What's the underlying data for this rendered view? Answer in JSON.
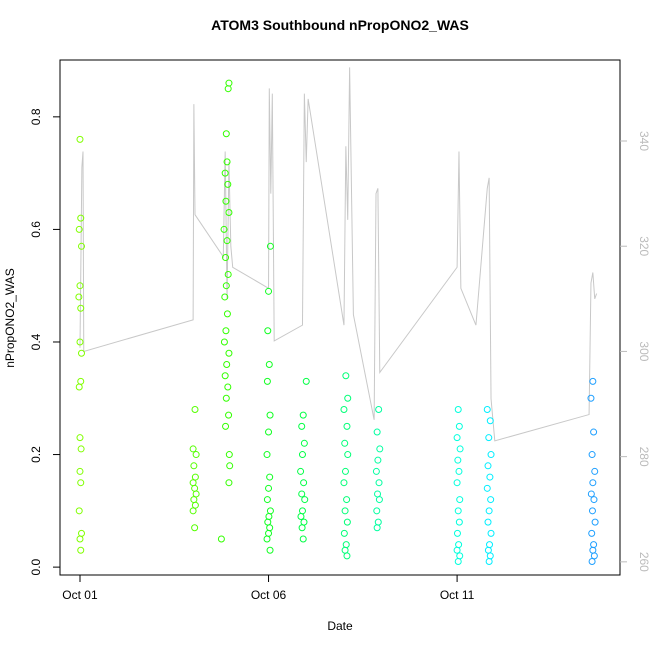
{
  "chart_data": {
    "type": "scatter",
    "title": "ATOM3 Southbound nPropONO2_WAS",
    "x_label": "Date",
    "y_label": "nPropONO2_WAS",
    "xlim": [
      -0.53,
      14.32
    ],
    "ylim": [
      -0.014,
      0.901
    ],
    "y2lim": [
      257.5,
      355.4
    ],
    "xticks": [
      {
        "value": 0,
        "label": "Oct 01"
      },
      {
        "value": 5,
        "label": "Oct 06"
      },
      {
        "value": 10,
        "label": "Oct 11"
      }
    ],
    "yticks": [
      {
        "value": 0,
        "label": "0.0"
      },
      0.2,
      0.4,
      0.6,
      0.8
    ],
    "y2ticks": [
      260,
      280,
      300,
      320,
      340
    ],
    "series": [
      {
        "color": "#80ff00",
        "x": [
          0.0,
          0.02,
          -0.02,
          0.04,
          0.0,
          -0.03,
          0.02,
          0.0,
          0.04,
          0.02,
          -0.02,
          0.0,
          0.03,
          0.0,
          0.02,
          -0.02,
          0.04,
          0.0,
          0.02
        ],
        "values": [
          0.76,
          0.62,
          0.6,
          0.57,
          0.5,
          0.48,
          0.46,
          0.4,
          0.38,
          0.33,
          0.32,
          0.23,
          0.21,
          0.17,
          0.15,
          0.1,
          0.06,
          0.05,
          0.03
        ]
      },
      {
        "color": "#55ff00",
        "x": [
          3.05,
          3.0,
          3.08,
          3.02,
          3.06,
          3.0,
          3.04,
          3.08,
          3.02,
          3.06,
          3.0,
          3.04
        ],
        "values": [
          0.28,
          0.21,
          0.2,
          0.18,
          0.16,
          0.15,
          0.14,
          0.13,
          0.12,
          0.11,
          0.1,
          0.07
        ]
      },
      {
        "color": "#33ff00",
        "x": [
          3.95,
          3.93,
          3.88,
          3.9,
          3.85,
          3.92,
          3.87,
          3.95,
          3.82,
          3.9,
          3.86,
          3.93,
          3.88,
          3.84,
          3.91,
          3.87,
          3.83,
          3.95,
          3.89,
          3.85,
          3.92,
          3.88,
          3.94,
          3.86,
          3.96,
          3.97,
          3.95,
          3.75
        ],
        "values": [
          0.86,
          0.85,
          0.77,
          0.72,
          0.7,
          0.68,
          0.65,
          0.63,
          0.6,
          0.58,
          0.55,
          0.52,
          0.5,
          0.48,
          0.45,
          0.42,
          0.4,
          0.38,
          0.36,
          0.34,
          0.32,
          0.3,
          0.27,
          0.25,
          0.2,
          0.18,
          0.15,
          0.05
        ]
      },
      {
        "color": "#11ff22",
        "x": [
          5.05,
          5.0,
          4.98,
          5.02,
          4.97,
          5.04,
          5.0,
          4.96,
          5.03,
          5.0,
          4.97,
          5.05,
          5.01,
          4.98,
          5.03,
          5.0,
          4.96,
          5.04
        ],
        "values": [
          0.57,
          0.49,
          0.42,
          0.36,
          0.33,
          0.27,
          0.24,
          0.2,
          0.16,
          0.14,
          0.12,
          0.1,
          0.09,
          0.08,
          0.07,
          0.06,
          0.05,
          0.03
        ]
      },
      {
        "color": "#00ff44",
        "x": [
          6.0,
          5.92,
          5.88,
          5.95,
          5.9,
          5.85,
          5.93,
          5.88,
          5.96,
          5.9,
          5.86,
          5.94,
          5.89,
          5.92
        ],
        "values": [
          0.33,
          0.27,
          0.25,
          0.22,
          0.2,
          0.17,
          0.15,
          0.13,
          0.12,
          0.1,
          0.09,
          0.08,
          0.07,
          0.05
        ]
      },
      {
        "color": "#00ff77",
        "x": [
          7.05,
          7.1,
          7.0,
          7.08,
          7.02,
          7.1,
          7.04,
          7.0,
          7.07,
          7.03,
          7.09,
          7.01,
          7.06,
          7.03,
          7.08
        ],
        "values": [
          0.34,
          0.3,
          0.28,
          0.25,
          0.22,
          0.2,
          0.17,
          0.15,
          0.12,
          0.1,
          0.08,
          0.06,
          0.04,
          0.03,
          0.02
        ]
      },
      {
        "color": "#00ffa0",
        "x": [
          7.92,
          7.88,
          7.95,
          7.9,
          7.86,
          7.93,
          7.89,
          7.94,
          7.87,
          7.91,
          7.88
        ],
        "values": [
          0.28,
          0.24,
          0.21,
          0.19,
          0.17,
          0.15,
          0.13,
          0.12,
          0.1,
          0.08,
          0.07
        ]
      },
      {
        "color": "#00ffdd",
        "x": [
          10.03,
          10.06,
          10.0,
          10.08,
          10.02,
          10.05,
          10.0,
          10.07,
          10.03,
          10.06,
          10.01,
          10.04,
          10.0,
          10.07,
          10.03
        ],
        "values": [
          0.28,
          0.25,
          0.23,
          0.21,
          0.19,
          0.17,
          0.15,
          0.12,
          0.1,
          0.08,
          0.06,
          0.04,
          0.03,
          0.02,
          0.01
        ]
      },
      {
        "color": "#00eeff",
        "x": [
          10.8,
          10.88,
          10.84,
          10.9,
          10.82,
          10.87,
          10.8,
          10.89,
          10.85,
          10.82,
          10.9,
          10.86,
          10.83,
          10.88,
          10.85
        ],
        "values": [
          0.28,
          0.26,
          0.23,
          0.2,
          0.18,
          0.16,
          0.14,
          0.12,
          0.1,
          0.08,
          0.06,
          0.04,
          0.03,
          0.02,
          0.01
        ]
      },
      {
        "color": "#1e9fff",
        "x": [
          13.6,
          13.55,
          13.62,
          13.58,
          13.65,
          13.6,
          13.56,
          13.63,
          13.59,
          13.66,
          13.57,
          13.62,
          13.6,
          13.64,
          13.58
        ],
        "values": [
          0.33,
          0.3,
          0.24,
          0.2,
          0.17,
          0.15,
          0.13,
          0.12,
          0.1,
          0.08,
          0.06,
          0.04,
          0.03,
          0.02,
          0.01
        ]
      },
      {
        "type": "line",
        "axis": "y2",
        "color": "#c8c8c8",
        "x": [
          0.0,
          0.05,
          0.08,
          0.1,
          3.0,
          3.02,
          3.05,
          3.8,
          3.85,
          3.9,
          3.95,
          4.0,
          4.05,
          5.0,
          5.02,
          5.06,
          5.1,
          5.15,
          5.9,
          5.95,
          6.0,
          6.05,
          7.0,
          7.05,
          7.1,
          7.15,
          7.25,
          7.8,
          7.85,
          7.9,
          7.95,
          10.0,
          10.05,
          10.1,
          10.5,
          10.8,
          10.85,
          10.9,
          11.0,
          13.5,
          13.55,
          13.6,
          13.65,
          13.7
        ],
        "values": [
          300.7,
          335,
          338,
          300,
          306,
          347,
          326,
          318,
          338,
          310,
          336,
          320,
          316,
          312,
          350,
          330,
          349,
          302,
          305,
          349,
          336,
          348,
          305,
          339,
          325,
          354,
          307,
          287,
          330,
          331,
          296,
          316,
          338,
          312,
          305,
          331,
          333,
          291,
          283,
          288,
          313,
          315,
          310,
          311
        ]
      }
    ]
  }
}
